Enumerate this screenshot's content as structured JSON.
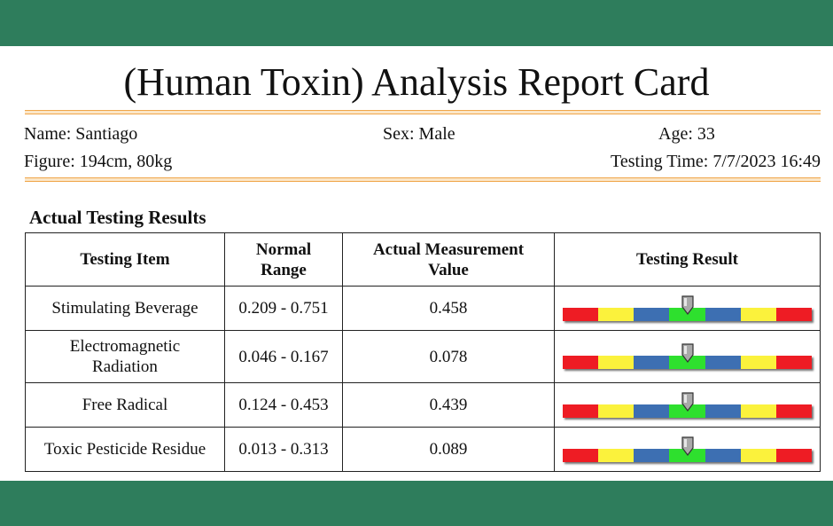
{
  "report": {
    "title": "(Human Toxin) Analysis Report Card",
    "name": "Name: Santiago",
    "sex": "Sex: Male",
    "age": "Age: 33",
    "figure": "Figure: 194cm, 80kg",
    "testing_time": "Testing Time: 7/7/2023 16:49"
  },
  "results": {
    "heading": "Actual Testing Results",
    "headers": {
      "item": "Testing Item",
      "range": "Normal Range",
      "value": "Actual Measurement Value",
      "result": "Testing Result"
    },
    "rows": [
      {
        "item": "Stimulating Beverage",
        "range": "0.209 - 0.751",
        "value": "0.458",
        "pointer_fraction": 0.5
      },
      {
        "item": "Electromagnetic Radiation",
        "range": "0.046 - 0.167",
        "value": "0.078",
        "pointer_fraction": 0.5
      },
      {
        "item": "Free Radical",
        "range": "0.124 - 0.453",
        "value": "0.439",
        "pointer_fraction": 0.5
      },
      {
        "item": "Toxic Pesticide Residue",
        "range": "0.013 - 0.313",
        "value": "0.089",
        "pointer_fraction": 0.5
      }
    ],
    "gauge_colors": [
      "#ee1c24",
      "#fbf23c",
      "#3d6fb2",
      "#2ee02e",
      "#3d6fb2",
      "#fbf23c",
      "#ee1c24"
    ]
  }
}
